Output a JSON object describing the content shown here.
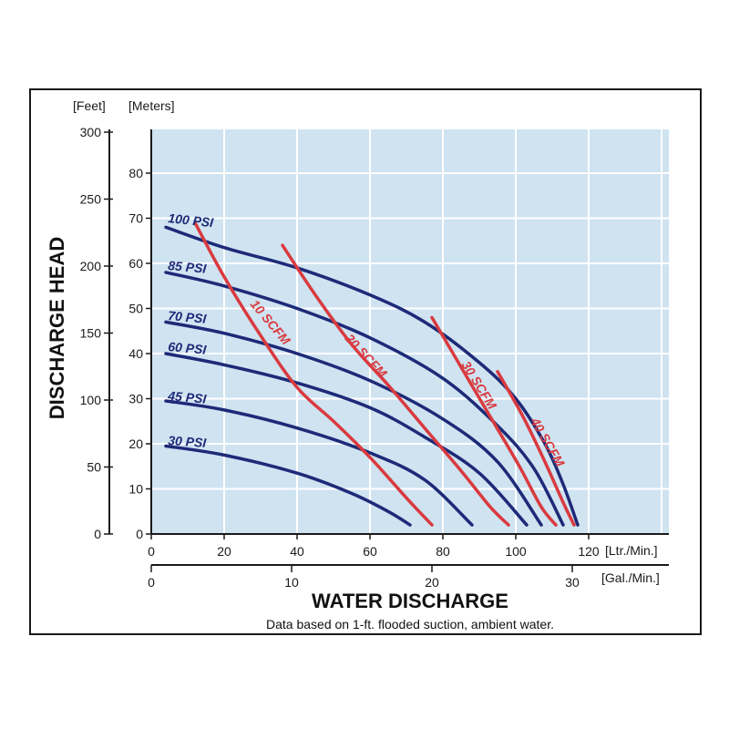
{
  "chart_data": {
    "type": "line",
    "title": "",
    "xlabel": "WATER DISCHARGE",
    "ylabel": "DISCHARGE HEAD",
    "note": "Data based on 1-ft. flooded suction, ambient water.",
    "x_primary": {
      "unit": "[Ltr./Min.]",
      "range": [
        0,
        140
      ],
      "ticks": [
        0,
        20,
        40,
        60,
        80,
        100,
        120
      ]
    },
    "x_secondary": {
      "unit": "[Gal./Min.]",
      "range": [
        0,
        37
      ],
      "ticks": [
        0,
        10,
        20,
        30
      ]
    },
    "y_feet": {
      "unit": "[Feet]",
      "range": [
        0,
        300
      ],
      "ticks": [
        0,
        50,
        100,
        150,
        200,
        250,
        300
      ]
    },
    "y_meters": {
      "unit": "[Meters]",
      "range": [
        0,
        90
      ],
      "ticks": [
        0,
        10,
        20,
        30,
        40,
        50,
        60,
        70,
        80
      ]
    },
    "grid": true,
    "colors": {
      "plot_background": "#cfe3f1",
      "pressure_curves": "#1d2a78",
      "air_curves": "#d93a3f",
      "grid": "#ffffff"
    },
    "series": [
      {
        "name": "100 PSI",
        "group": "pressure",
        "x": [
          4,
          20,
          40,
          60,
          75,
          90,
          100,
          108,
          113,
          117
        ],
        "y": [
          68,
          63.5,
          59,
          53,
          47,
          38,
          30,
          20,
          11,
          2
        ]
      },
      {
        "name": "85 PSI",
        "group": "pressure",
        "x": [
          4,
          20,
          40,
          60,
          80,
          95,
          105,
          113
        ],
        "y": [
          58,
          55,
          50,
          43.5,
          34.5,
          24,
          14.5,
          2
        ]
      },
      {
        "name": "70 PSI",
        "group": "pressure",
        "x": [
          4,
          20,
          40,
          60,
          80,
          95,
          107
        ],
        "y": [
          47,
          44.5,
          40,
          34,
          25.5,
          16,
          2
        ]
      },
      {
        "name": "60 PSI",
        "group": "pressure",
        "x": [
          4,
          20,
          40,
          60,
          75,
          90,
          103
        ],
        "y": [
          40,
          37.5,
          33.5,
          28,
          21.5,
          13.5,
          2
        ]
      },
      {
        "name": "45 PSI",
        "group": "pressure",
        "x": [
          4,
          20,
          40,
          60,
          75,
          88
        ],
        "y": [
          29.5,
          27.5,
          23.5,
          18,
          12,
          2
        ]
      },
      {
        "name": "30 PSI",
        "group": "pressure",
        "x": [
          4,
          20,
          40,
          55,
          65,
          71
        ],
        "y": [
          19.5,
          17.5,
          13.5,
          9,
          5,
          2
        ]
      },
      {
        "name": "10 SCFM",
        "group": "air",
        "x": [
          12,
          20,
          30,
          40,
          50,
          60,
          70,
          77
        ],
        "y": [
          69,
          57,
          44,
          32.5,
          25,
          17,
          8,
          2
        ]
      },
      {
        "name": "20 SCFM",
        "group": "air",
        "x": [
          36,
          45,
          55,
          65,
          75,
          85,
          93,
          98
        ],
        "y": [
          64,
          53,
          42,
          33,
          23.5,
          14,
          6,
          2
        ]
      },
      {
        "name": "30 SCFM",
        "group": "air",
        "x": [
          77,
          85,
          93,
          101,
          107,
          111
        ],
        "y": [
          48,
          37,
          26,
          15,
          6,
          2
        ]
      },
      {
        "name": "40 SCFM",
        "group": "air",
        "x": [
          95,
          102,
          108,
          113,
          116
        ],
        "y": [
          36,
          26,
          16,
          7,
          2
        ]
      }
    ]
  }
}
